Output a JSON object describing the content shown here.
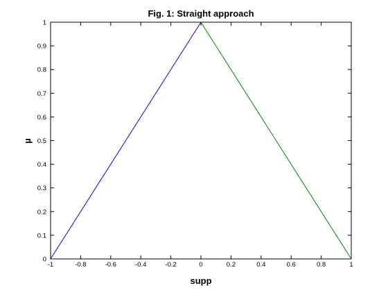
{
  "chart_data": {
    "type": "line",
    "title": "Fig. 1: Straight approach",
    "xlabel": "supp",
    "ylabel": "µ",
    "xlim": [
      -1,
      1
    ],
    "ylim": [
      0,
      1
    ],
    "xticks": [
      -1,
      -0.8,
      -0.6,
      -0.4,
      -0.2,
      0,
      0.2,
      0.4,
      0.6,
      0.8,
      1
    ],
    "xtick_labels": [
      "-1",
      "-0.8",
      "-0.6",
      "-0.4",
      "-0.2",
      "0",
      "0.2",
      "0.4",
      "0.6",
      "0.8",
      "1"
    ],
    "yticks": [
      0,
      0.1,
      0.2,
      0.3,
      0.4,
      0.5,
      0.6,
      0.7,
      0.8,
      0.9,
      1
    ],
    "ytick_labels": [
      "0",
      "0.1",
      "0.2",
      "0.3",
      "0.4",
      "0.5",
      "0.6",
      "0.7",
      "0.8",
      "0.9",
      "1"
    ],
    "grid": false,
    "series": [
      {
        "color": "#0000ff",
        "x": [
          -1,
          0
        ],
        "y": [
          0,
          1
        ]
      },
      {
        "color": "#008000",
        "x": [
          0,
          1
        ],
        "y": [
          1,
          0
        ]
      }
    ]
  }
}
